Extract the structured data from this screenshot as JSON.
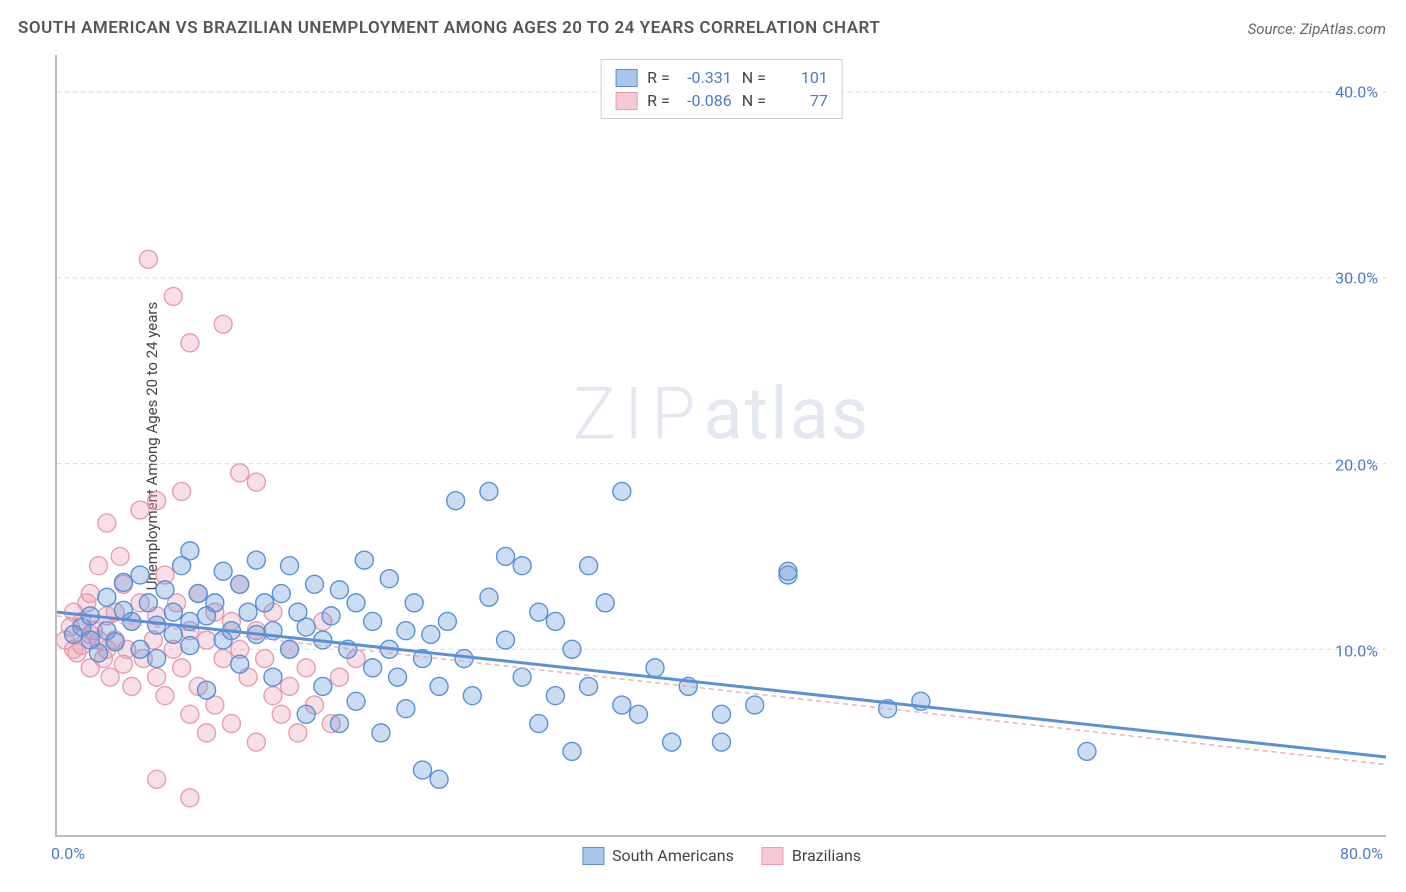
{
  "title": "SOUTH AMERICAN VS BRAZILIAN UNEMPLOYMENT AMONG AGES 20 TO 24 YEARS CORRELATION CHART",
  "source": "Source: ZipAtlas.com",
  "y_axis_label": "Unemployment Among Ages 20 to 24 years",
  "watermark": {
    "zip": "ZIP",
    "atlas": "atlas"
  },
  "chart": {
    "type": "scatter",
    "background_color": "#ffffff",
    "grid_color": "#d8d8d8",
    "axis_color": "#bbbbbb",
    "xlim": [
      0,
      80
    ],
    "ylim": [
      0,
      42
    ],
    "x_ticks": [
      {
        "value": 0,
        "label": "0.0%"
      },
      {
        "value": 80,
        "label": "80.0%"
      }
    ],
    "y_ticks": [
      {
        "value": 10,
        "label": "10.0%"
      },
      {
        "value": 20,
        "label": "20.0%"
      },
      {
        "value": 30,
        "label": "30.0%"
      },
      {
        "value": 40,
        "label": "40.0%"
      }
    ],
    "y_tick_color": "#4a7bc8",
    "x_tick_color": "#4a7bc8",
    "tick_fontsize": 16,
    "marker_radius": 9,
    "marker_stroke_width": 1.4,
    "marker_fill_opacity": 0.32,
    "series": [
      {
        "name": "South Americans",
        "color": "#5a91d6",
        "stroke": "#5a91d6",
        "r_value": "-0.331",
        "n_value": "101",
        "trend": {
          "x1": 0,
          "y1": 12.0,
          "x2": 80,
          "y2": 4.2,
          "width": 3,
          "dash": "none"
        },
        "points": [
          [
            1,
            10.8
          ],
          [
            1.5,
            11.2
          ],
          [
            2,
            10.5
          ],
          [
            2,
            11.8
          ],
          [
            2.5,
            9.8
          ],
          [
            3,
            12.8
          ],
          [
            3,
            11.0
          ],
          [
            3.5,
            10.4
          ],
          [
            4,
            12.1
          ],
          [
            4,
            13.6
          ],
          [
            4.5,
            11.5
          ],
          [
            5,
            10.0
          ],
          [
            5,
            14.0
          ],
          [
            5.5,
            12.5
          ],
          [
            6,
            11.3
          ],
          [
            6,
            9.5
          ],
          [
            6.5,
            13.2
          ],
          [
            7,
            10.8
          ],
          [
            7,
            12.0
          ],
          [
            7.5,
            14.5
          ],
          [
            8,
            11.5
          ],
          [
            8,
            10.2
          ],
          [
            8,
            15.3
          ],
          [
            8.5,
            13.0
          ],
          [
            9,
            11.8
          ],
          [
            9,
            7.8
          ],
          [
            9.5,
            12.5
          ],
          [
            10,
            10.5
          ],
          [
            10,
            14.2
          ],
          [
            10.5,
            11.0
          ],
          [
            11,
            13.5
          ],
          [
            11,
            9.2
          ],
          [
            11.5,
            12.0
          ],
          [
            12,
            10.8
          ],
          [
            12,
            14.8
          ],
          [
            12.5,
            12.5
          ],
          [
            13,
            11.0
          ],
          [
            13,
            8.5
          ],
          [
            13.5,
            13.0
          ],
          [
            14,
            10.0
          ],
          [
            14,
            14.5
          ],
          [
            14.5,
            12.0
          ],
          [
            15,
            11.2
          ],
          [
            15,
            6.5
          ],
          [
            15.5,
            13.5
          ],
          [
            16,
            10.5
          ],
          [
            16,
            8.0
          ],
          [
            16.5,
            11.8
          ],
          [
            17,
            13.2
          ],
          [
            17,
            6.0
          ],
          [
            17.5,
            10.0
          ],
          [
            18,
            12.5
          ],
          [
            18,
            7.2
          ],
          [
            18.5,
            14.8
          ],
          [
            19,
            9.0
          ],
          [
            19,
            11.5
          ],
          [
            19.5,
            5.5
          ],
          [
            20,
            10.0
          ],
          [
            20,
            13.8
          ],
          [
            20.5,
            8.5
          ],
          [
            21,
            11.0
          ],
          [
            21,
            6.8
          ],
          [
            21.5,
            12.5
          ],
          [
            22,
            9.5
          ],
          [
            22,
            3.5
          ],
          [
            22.5,
            10.8
          ],
          [
            23,
            8.0
          ],
          [
            23,
            3.0
          ],
          [
            23.5,
            11.5
          ],
          [
            24,
            18.0
          ],
          [
            24.5,
            9.5
          ],
          [
            25,
            7.5
          ],
          [
            26,
            18.5
          ],
          [
            26,
            12.8
          ],
          [
            27,
            10.5
          ],
          [
            27,
            15.0
          ],
          [
            28,
            8.5
          ],
          [
            28,
            14.5
          ],
          [
            29,
            6.0
          ],
          [
            29,
            12.0
          ],
          [
            30,
            7.5
          ],
          [
            30,
            11.5
          ],
          [
            31,
            10.0
          ],
          [
            31,
            4.5
          ],
          [
            32,
            8.0
          ],
          [
            32,
            14.5
          ],
          [
            33,
            12.5
          ],
          [
            34,
            7.0
          ],
          [
            34,
            18.5
          ],
          [
            35,
            6.5
          ],
          [
            36,
            9.0
          ],
          [
            37,
            5.0
          ],
          [
            38,
            8.0
          ],
          [
            40,
            6.5
          ],
          [
            40,
            5.0
          ],
          [
            42,
            7.0
          ],
          [
            44,
            14.0
          ],
          [
            44,
            14.2
          ],
          [
            50,
            6.8
          ],
          [
            52,
            7.2
          ],
          [
            62,
            4.5
          ]
        ]
      },
      {
        "name": "Brazilians",
        "color": "#e89cb0",
        "stroke": "#e89cb0",
        "r_value": "-0.086",
        "n_value": "77",
        "trend": {
          "x1": 0,
          "y1": 11.8,
          "x2": 80,
          "y2": 3.8,
          "width": 1.2,
          "dash": "5,4"
        },
        "points": [
          [
            0.5,
            10.5
          ],
          [
            0.8,
            11.2
          ],
          [
            1,
            10.0
          ],
          [
            1,
            12.0
          ],
          [
            1.2,
            9.8
          ],
          [
            1.5,
            11.5
          ],
          [
            1.5,
            10.2
          ],
          [
            1.8,
            12.5
          ],
          [
            2,
            10.8
          ],
          [
            2,
            13.0
          ],
          [
            2,
            9.0
          ],
          [
            2.2,
            11.0
          ],
          [
            2.5,
            10.5
          ],
          [
            2.5,
            14.5
          ],
          [
            2.8,
            9.5
          ],
          [
            3,
            11.8
          ],
          [
            3,
            10.0
          ],
          [
            3,
            16.8
          ],
          [
            3.2,
            8.5
          ],
          [
            3.5,
            12.0
          ],
          [
            3.5,
            10.5
          ],
          [
            3.8,
            15.0
          ],
          [
            4,
            9.2
          ],
          [
            4,
            13.5
          ],
          [
            4.2,
            10.0
          ],
          [
            4.5,
            11.5
          ],
          [
            4.5,
            8.0
          ],
          [
            5,
            12.5
          ],
          [
            5,
            17.5
          ],
          [
            5.2,
            9.5
          ],
          [
            5.5,
            31.0
          ],
          [
            5.8,
            10.5
          ],
          [
            6,
            11.8
          ],
          [
            6,
            8.5
          ],
          [
            6,
            18.0
          ],
          [
            6.5,
            14.0
          ],
          [
            6.5,
            7.5
          ],
          [
            7,
            29.0
          ],
          [
            7,
            10.0
          ],
          [
            7.2,
            12.5
          ],
          [
            7.5,
            9.0
          ],
          [
            7.5,
            18.5
          ],
          [
            8,
            11.0
          ],
          [
            8,
            6.5
          ],
          [
            8,
            26.5
          ],
          [
            8.5,
            13.0
          ],
          [
            8.5,
            8.0
          ],
          [
            9,
            10.5
          ],
          [
            9,
            5.5
          ],
          [
            9.5,
            12.0
          ],
          [
            9.5,
            7.0
          ],
          [
            10,
            27.5
          ],
          [
            10,
            9.5
          ],
          [
            10.5,
            11.5
          ],
          [
            10.5,
            6.0
          ],
          [
            11,
            10.0
          ],
          [
            11,
            13.5
          ],
          [
            11,
            19.5
          ],
          [
            11.5,
            8.5
          ],
          [
            12,
            11.0
          ],
          [
            12,
            5.0
          ],
          [
            12,
            19.0
          ],
          [
            12.5,
            9.5
          ],
          [
            13,
            7.5
          ],
          [
            13,
            12.0
          ],
          [
            13.5,
            6.5
          ],
          [
            14,
            10.0
          ],
          [
            14,
            8.0
          ],
          [
            14.5,
            5.5
          ],
          [
            15,
            9.0
          ],
          [
            15.5,
            7.0
          ],
          [
            16,
            11.5
          ],
          [
            16.5,
            6.0
          ],
          [
            17,
            8.5
          ],
          [
            18,
            9.5
          ],
          [
            8,
            2.0
          ],
          [
            6,
            3.0
          ]
        ]
      }
    ]
  },
  "legend_top": {
    "r_label": "R =",
    "n_label": "N ="
  },
  "legend_bottom": [
    {
      "label": "South Americans",
      "fill": "#a8c5ea",
      "stroke": "#5a91d6"
    },
    {
      "label": "Brazilians",
      "fill": "#f5c8d4",
      "stroke": "#e89cb0"
    }
  ]
}
